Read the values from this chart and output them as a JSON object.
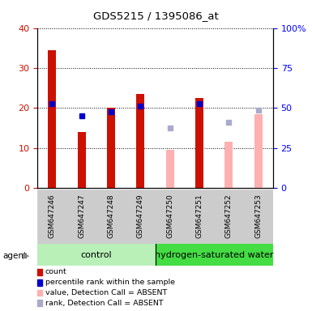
{
  "title": "GDS5215 / 1395086_at",
  "samples": [
    "GSM647246",
    "GSM647247",
    "GSM647248",
    "GSM647249",
    "GSM647250",
    "GSM647251",
    "GSM647252",
    "GSM647253"
  ],
  "count_values": [
    34.5,
    14.0,
    20.0,
    23.5,
    null,
    22.5,
    null,
    null
  ],
  "rank_values": [
    21.0,
    18.0,
    19.0,
    20.5,
    null,
    21.0,
    null,
    null
  ],
  "absent_value": [
    null,
    null,
    null,
    null,
    9.5,
    null,
    11.5,
    18.5
  ],
  "absent_rank": [
    null,
    null,
    null,
    null,
    15.0,
    null,
    16.5,
    19.5
  ],
  "count_color": "#cc1100",
  "rank_color": "#0000cc",
  "absent_value_color": "#ffb0b0",
  "absent_rank_color": "#aaaacc",
  "ylim_left": [
    0,
    40
  ],
  "ylim_right": [
    0,
    100
  ],
  "yticks_left": [
    0,
    10,
    20,
    30,
    40
  ],
  "yticks_right": [
    0,
    25,
    50,
    75,
    100
  ],
  "ytick_labels_right": [
    "0",
    "25",
    "50",
    "75",
    "100%"
  ],
  "bar_width": 0.28,
  "control_color": "#b8f0b8",
  "h2_color": "#44dd44",
  "gray_color": "#cccccc",
  "legend": [
    {
      "label": "count",
      "type": "rect",
      "color": "#cc1100"
    },
    {
      "label": "percentile rank within the sample",
      "type": "rect",
      "color": "#0000cc"
    },
    {
      "label": "value, Detection Call = ABSENT",
      "type": "rect",
      "color": "#ffb0b0"
    },
    {
      "label": "rank, Detection Call = ABSENT",
      "type": "rect",
      "color": "#aaaacc"
    }
  ]
}
